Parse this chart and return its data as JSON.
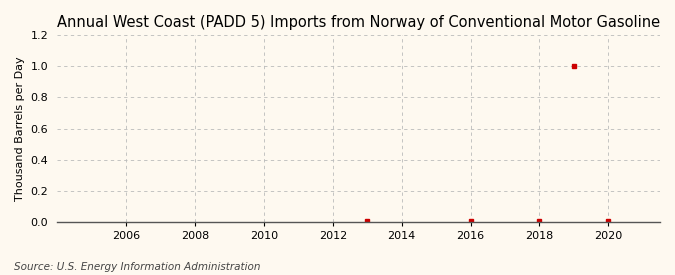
{
  "title": "Annual West Coast (PADD 5) Imports from Norway of Conventional Motor Gasoline",
  "ylabel": "Thousand Barrels per Day",
  "source": "Source: U.S. Energy Information Administration",
  "background_color": "#fef9f0",
  "plot_bg_color": "#fef9f0",
  "grid_color": "#bbbbbb",
  "data_points": [
    {
      "year": 2013,
      "value": 0.003
    },
    {
      "year": 2016,
      "value": 0.003
    },
    {
      "year": 2018,
      "value": 0.003
    },
    {
      "year": 2019,
      "value": 1.003
    },
    {
      "year": 2020,
      "value": 0.003
    }
  ],
  "marker_color": "#cc0000",
  "marker_size": 3.5,
  "xlim": [
    2004.0,
    2021.5
  ],
  "ylim": [
    0,
    1.2
  ],
  "xticks": [
    2006,
    2008,
    2010,
    2012,
    2014,
    2016,
    2018,
    2020
  ],
  "yticks": [
    0.0,
    0.2,
    0.4,
    0.6,
    0.8,
    1.0,
    1.2
  ],
  "title_fontsize": 10.5,
  "label_fontsize": 8,
  "tick_fontsize": 8,
  "source_fontsize": 7.5
}
